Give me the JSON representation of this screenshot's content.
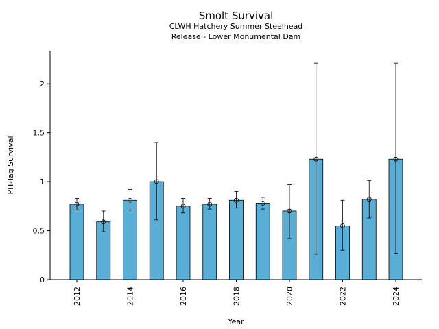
{
  "chart_data": {
    "type": "bar",
    "title": "Smolt Survival",
    "subtitle_lines": [
      "CLWH Hatchery Summer Steelhead",
      "Release - Lower Monumental Dam"
    ],
    "xlabel": "Year",
    "ylabel": "PIT-Tag Survival",
    "ylim": [
      0,
      2.33
    ],
    "yticks": [
      0,
      0.5,
      1,
      1.5,
      2
    ],
    "ytick_labels": [
      "0",
      "0.5",
      "1",
      "1.5",
      "2"
    ],
    "xtick_labels": [
      "2012",
      "2014",
      "2016",
      "2018",
      "2020",
      "2022",
      "2024"
    ],
    "grid": false,
    "bar_color": "#5aadd5",
    "edge_color": "#000000",
    "series": [
      {
        "x": [
          2012,
          2013,
          2014,
          2015,
          2016,
          2017,
          2018,
          2019,
          2020,
          2021,
          2022,
          2023,
          2024
        ],
        "values": [
          0.77,
          0.59,
          0.81,
          1.0,
          0.75,
          0.77,
          0.81,
          0.78,
          0.7,
          1.23,
          0.55,
          0.82,
          1.23
        ],
        "lower": [
          0.71,
          0.49,
          0.71,
          0.61,
          0.68,
          0.72,
          0.73,
          0.72,
          0.42,
          0.26,
          0.3,
          0.63,
          0.27
        ],
        "upper": [
          0.83,
          0.7,
          0.92,
          1.4,
          0.83,
          0.83,
          0.9,
          0.84,
          0.97,
          2.21,
          0.81,
          1.01,
          2.21
        ]
      }
    ]
  }
}
